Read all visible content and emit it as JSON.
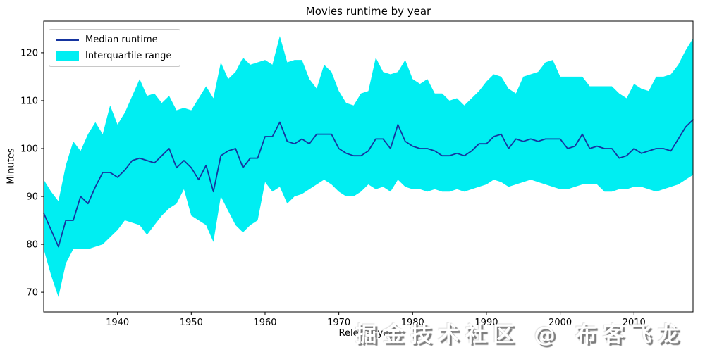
{
  "chart_data": {
    "type": "line",
    "title": "Movies runtime by year",
    "xlabel": "Release year",
    "ylabel": "Minutes",
    "xlim": [
      1930,
      2018
    ],
    "ylim": [
      65.9,
      126.6
    ],
    "xticks": [
      "1940",
      "1950",
      "1960",
      "1970",
      "1980",
      "1990",
      "2000",
      "2010"
    ],
    "yticks": [
      "70",
      "80",
      "90",
      "100",
      "110",
      "120"
    ],
    "grid": false,
    "legend_position": "upper left",
    "x": [
      1930,
      1931,
      1932,
      1933,
      1934,
      1935,
      1936,
      1937,
      1938,
      1939,
      1940,
      1941,
      1942,
      1943,
      1944,
      1945,
      1946,
      1947,
      1948,
      1949,
      1950,
      1951,
      1952,
      1953,
      1954,
      1955,
      1956,
      1957,
      1958,
      1959,
      1960,
      1961,
      1962,
      1963,
      1964,
      1965,
      1966,
      1967,
      1968,
      1969,
      1970,
      1971,
      1972,
      1973,
      1974,
      1975,
      1976,
      1977,
      1978,
      1979,
      1980,
      1981,
      1982,
      1983,
      1984,
      1985,
      1986,
      1987,
      1988,
      1989,
      1990,
      1991,
      1992,
      1993,
      1994,
      1995,
      1996,
      1997,
      1998,
      1999,
      2000,
      2001,
      2002,
      2003,
      2004,
      2005,
      2006,
      2007,
      2008,
      2009,
      2010,
      2011,
      2012,
      2013,
      2014,
      2015,
      2016,
      2017,
      2018
    ],
    "series": [
      {
        "name": "Median runtime",
        "kind": "line",
        "color": "#15349f",
        "values": [
          86.5,
          83,
          79.5,
          85,
          85,
          90,
          88.5,
          92,
          95,
          95,
          94,
          95.5,
          97.5,
          98,
          97.5,
          97,
          98.5,
          100,
          96,
          97.5,
          96,
          93.5,
          96.5,
          91,
          98.5,
          99.5,
          100,
          96,
          98,
          98,
          102.5,
          102.5,
          105.5,
          101.5,
          101,
          102,
          101,
          103,
          103,
          103,
          100,
          99,
          98.5,
          98.5,
          99.5,
          102,
          102,
          100,
          105,
          101.5,
          100.5,
          100,
          100,
          99.5,
          98.5,
          98.5,
          99,
          98.5,
          99.5,
          101,
          101,
          102.5,
          103,
          100,
          102,
          101.5,
          102,
          101.5,
          102,
          102,
          102,
          100,
          100.5,
          103,
          100,
          100.5,
          100,
          100,
          98,
          98.5,
          100,
          99,
          99.5,
          100,
          100,
          99.5,
          102,
          104.5,
          106
        ]
      },
      {
        "name": "Interquartile range",
        "kind": "band",
        "color": "#00eef2",
        "lower": [
          79,
          73.5,
          69,
          76,
          79,
          79,
          79,
          79.5,
          80,
          81.5,
          83,
          85,
          84.5,
          84,
          82,
          84,
          86,
          87.5,
          88.5,
          91.5,
          86,
          85,
          84,
          80.5,
          90,
          87,
          84,
          82.5,
          84,
          85,
          93,
          91,
          92,
          88.5,
          90,
          90.5,
          91.5,
          92.5,
          93.5,
          92.5,
          91,
          90,
          90,
          91,
          92.5,
          91.5,
          92,
          91,
          93.5,
          92,
          91.5,
          91.5,
          91,
          91.5,
          91,
          91,
          91.5,
          91,
          91.5,
          92,
          92.5,
          93.5,
          93,
          92,
          92.5,
          93,
          93.5,
          93,
          92.5,
          92,
          91.5,
          91.5,
          92,
          92.5,
          92.5,
          92.5,
          91,
          91,
          91.5,
          91.5,
          92,
          92,
          91.5,
          91,
          91.5,
          92,
          92.5,
          93.5,
          94.5
        ],
        "upper": [
          93.5,
          91,
          89,
          96.5,
          101.5,
          99.5,
          103,
          105.5,
          103,
          109,
          105,
          107.5,
          111,
          114.5,
          111,
          111.5,
          109.5,
          111,
          108,
          108.5,
          108,
          110.5,
          113,
          110.5,
          118,
          114.5,
          116,
          119,
          117.5,
          118,
          118.5,
          117.5,
          123.5,
          118,
          118.5,
          118.5,
          114.5,
          112.5,
          117.5,
          116,
          112,
          109.5,
          109,
          111.5,
          112,
          119,
          116,
          115.5,
          116,
          118.5,
          114.5,
          113.5,
          114.5,
          111.5,
          111.5,
          110,
          110.5,
          109,
          110.5,
          112,
          114,
          115.5,
          115,
          112.5,
          111.5,
          115,
          115.5,
          116,
          118,
          118.5,
          115,
          115,
          115,
          115,
          113,
          113,
          113,
          113,
          111.5,
          110.5,
          113.5,
          112.5,
          112,
          115,
          115,
          115.5,
          117.5,
          120.5,
          123
        ]
      }
    ]
  },
  "watermark": {
    "text": "掘金技术社区 @ 布客飞龙",
    "color": "#ffffff",
    "shadow_color": "#6e6e6e"
  }
}
